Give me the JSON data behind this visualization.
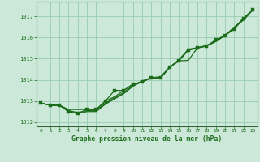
{
  "bg_color": "#cce8d8",
  "plot_bg_color": "#cce8d8",
  "grid_color": "#99ccb4",
  "line_color": "#1a6b1a",
  "xlabel": "Graphe pression niveau de la mer (hPa)",
  "xlim": [
    -0.5,
    23.5
  ],
  "ylim": [
    1011.8,
    1017.7
  ],
  "yticks": [
    1012,
    1013,
    1014,
    1015,
    1016,
    1017
  ],
  "xticks": [
    0,
    1,
    2,
    3,
    4,
    5,
    6,
    7,
    8,
    9,
    10,
    11,
    12,
    13,
    14,
    15,
    16,
    17,
    18,
    19,
    20,
    21,
    22,
    23
  ],
  "series1": [
    1012.9,
    1012.8,
    1012.8,
    1012.6,
    1012.6,
    1012.6,
    1012.6,
    1013.0,
    1013.2,
    1013.5,
    1013.8,
    1013.9,
    1014.1,
    1014.15,
    1014.62,
    1014.9,
    1014.92,
    1015.52,
    1015.6,
    1015.82,
    1016.1,
    1016.5,
    1016.82,
    1017.3
  ],
  "series2": [
    1012.9,
    1012.8,
    1012.8,
    1012.5,
    1012.4,
    1012.5,
    1012.5,
    1012.85,
    1013.1,
    1013.35,
    1013.7,
    1013.92,
    1014.1,
    1014.1,
    1014.6,
    1014.95,
    1015.42,
    1015.52,
    1015.62,
    1015.82,
    1016.12,
    1016.45,
    1016.92,
    1017.3
  ],
  "series3": [
    1012.9,
    1012.8,
    1012.8,
    1012.55,
    1012.45,
    1012.55,
    1012.55,
    1012.9,
    1013.15,
    1013.4,
    1013.75,
    1013.95,
    1014.1,
    1014.1,
    1014.6,
    1014.95,
    1015.45,
    1015.52,
    1015.62,
    1015.82,
    1016.12,
    1016.45,
    1016.92,
    1017.3
  ],
  "series4": [
    1012.9,
    1012.8,
    1012.8,
    1012.5,
    1012.4,
    1012.6,
    1012.6,
    1013.0,
    1013.5,
    1013.5,
    1013.8,
    1013.9,
    1014.1,
    1014.1,
    1014.6,
    1014.9,
    1015.4,
    1015.5,
    1015.6,
    1015.9,
    1016.1,
    1016.4,
    1016.9,
    1017.3
  ]
}
